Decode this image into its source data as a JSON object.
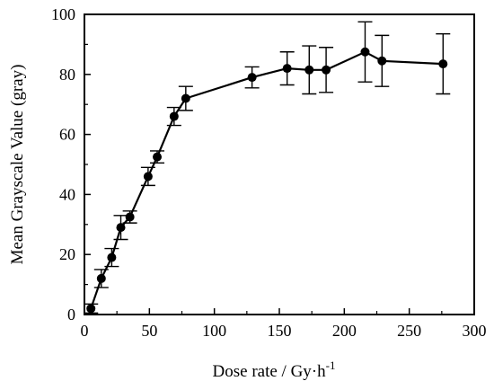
{
  "chart_data": {
    "type": "line",
    "xlabel": "Dose rate / Gy·h",
    "xlabel_superscript": "-1",
    "ylabel": "Mean Grayscale Value (gray)",
    "xlim": [
      0,
      300
    ],
    "ylim": [
      0,
      100
    ],
    "xticks": [
      0,
      50,
      100,
      150,
      200,
      250,
      300
    ],
    "yticks": [
      0,
      20,
      40,
      60,
      80,
      100
    ],
    "grid": false,
    "series": [
      {
        "marker": "filled-circle",
        "color": "#000000",
        "x": [
          5,
          13,
          21,
          28,
          35,
          49,
          56,
          69,
          78,
          129,
          156,
          173,
          186,
          216,
          229,
          276
        ],
        "y": [
          2,
          12,
          19,
          29,
          32.5,
          46,
          52.5,
          66,
          72,
          79,
          82,
          81.5,
          81.5,
          87.5,
          84.5,
          83.5
        ],
        "err": [
          1.5,
          3,
          3,
          4,
          2,
          3,
          2,
          3,
          4,
          3.5,
          5.5,
          8,
          7.5,
          10,
          8.5,
          10
        ]
      }
    ]
  }
}
